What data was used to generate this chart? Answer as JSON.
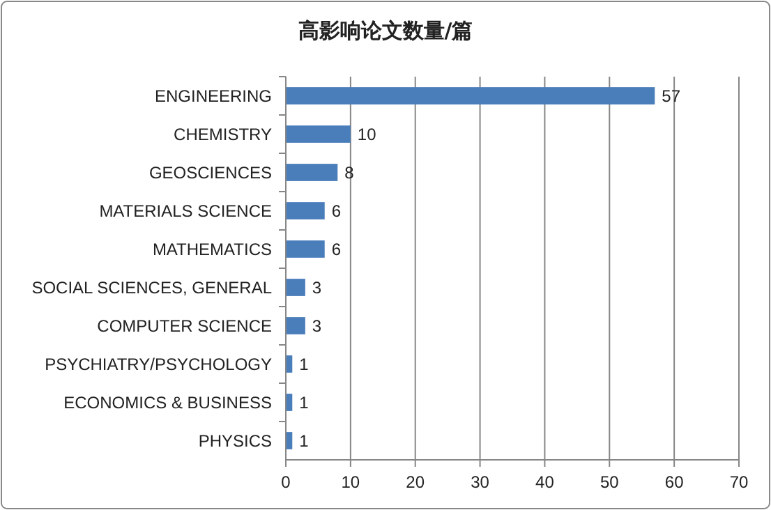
{
  "chart_data": {
    "type": "bar",
    "orientation": "horizontal",
    "title": "高影响论文数量/篇",
    "categories": [
      "ENGINEERING",
      "CHEMISTRY",
      "GEOSCIENCES",
      "MATERIALS SCIENCE",
      "MATHEMATICS",
      "SOCIAL SCIENCES, GENERAL",
      "COMPUTER SCIENCE",
      "PSYCHIATRY/PSYCHOLOGY",
      "ECONOMICS & BUSINESS",
      "PHYSICS"
    ],
    "values": [
      57,
      10,
      8,
      6,
      6,
      3,
      3,
      1,
      1,
      1
    ],
    "color": "#4a7ebb",
    "xlim": [
      0,
      70
    ],
    "xticks": [
      0,
      10,
      20,
      30,
      40,
      50,
      60,
      70
    ],
    "grid": "x",
    "data_labels": true
  }
}
